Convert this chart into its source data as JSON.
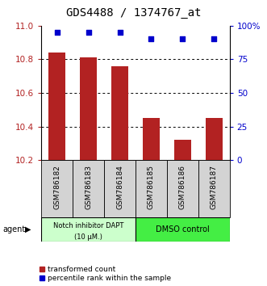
{
  "title": "GDS4488 / 1374767_at",
  "categories": [
    "GSM786182",
    "GSM786183",
    "GSM786184",
    "GSM786185",
    "GSM786186",
    "GSM786187"
  ],
  "bar_values": [
    10.84,
    10.81,
    10.76,
    10.45,
    10.32,
    10.45
  ],
  "percentile_values": [
    95,
    95,
    95,
    90,
    90,
    90
  ],
  "ylim_left": [
    10.2,
    11.0
  ],
  "ylim_right": [
    0,
    100
  ],
  "yticks_left": [
    10.2,
    10.4,
    10.6,
    10.8,
    11.0
  ],
  "yticks_right": [
    0,
    25,
    50,
    75,
    100
  ],
  "ytick_labels_right": [
    "0",
    "25",
    "50",
    "75",
    "100%"
  ],
  "bar_color": "#b22222",
  "dot_color": "#0000cc",
  "grid_color": "#000000",
  "bg_color": "#ffffff",
  "group1_label_line1": "Notch inhibitor DAPT",
  "group1_label_line2": "(10 μM.)",
  "group2_label": "DMSO control",
  "group1_color": "#ccffcc",
  "group2_color": "#44ee44",
  "group1_indices": [
    0,
    1,
    2
  ],
  "group2_indices": [
    3,
    4,
    5
  ],
  "agent_label": "agent",
  "legend_bar_label": "transformed count",
  "legend_dot_label": "percentile rank within the sample",
  "title_fontsize": 10,
  "tick_fontsize": 7.5,
  "label_fontsize": 7
}
